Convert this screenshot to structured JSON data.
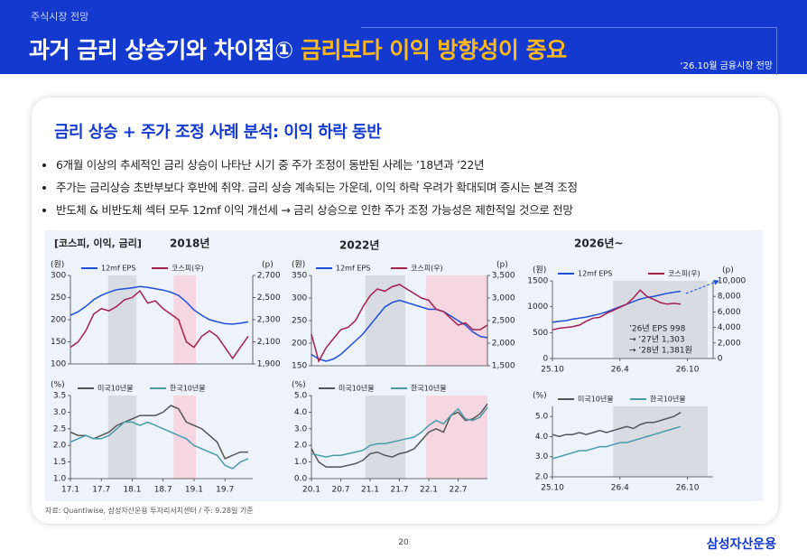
{
  "header": {
    "section": "주식시장 전망",
    "title": "과거 금리 상승기와 차이점①",
    "title_highlight": "금리보다 이익 방향성이 중요",
    "date": "‘26.10월 금융시장 전망"
  },
  "heading": "금리 상승 + 주가 조정 사례 분석: 이익 하락 동반",
  "bullets": [
    "6개월 이상의 추세적인 금리 상승이 나타난 시기 중 주가 조정이 동반된 사례는 ’18년과 ’22년",
    "주가는 금리상승 초반부보다 후반에 취약. 금리 상승 계속되는 가운데, 이익 하락 우려가 확대되며 증시는 본격 조정",
    "반도체 & 비반도체 섹터 모두 12mf 이익 개선세 → 금리 상승으로 인한 주가 조정 가능성은 제한적일 것으로 전망"
  ],
  "chart_group_label": "[코스피, 이익, 금리]",
  "source": "자료: Quantiwise, 삼성자산운용 투자리서치센터 / 주: 9.28일 기준",
  "page_number": "20",
  "logo": "삼성자산운용",
  "chart_data": [
    {
      "type": "line",
      "title": "2018년",
      "y_unit": "(원)",
      "y2_unit": "(p)",
      "x": [
        2017,
        2017.125,
        2017.25,
        2017.375,
        2017.5,
        2017.625,
        2017.75,
        2017.875,
        2018,
        2018.125,
        2018.25,
        2018.375,
        2018.5,
        2018.625,
        2018.75,
        2018.875,
        2019,
        2019.125,
        2019.25,
        2019.375,
        2019.5,
        2019.625,
        2019.75,
        2019.875
      ],
      "xlim": [
        2017,
        2019.95
      ],
      "ylim": [
        100,
        300
      ],
      "yticks": [
        100,
        150,
        200,
        250,
        300
      ],
      "y2lim": [
        1900,
        2700
      ],
      "y2ticks": [
        {
          "value": 1900,
          "label": "1,900"
        },
        {
          "value": 2100,
          "label": "2,100"
        },
        {
          "value": 2300,
          "label": "2,300"
        },
        {
          "value": 2500,
          "label": "2,500"
        },
        {
          "value": 2700,
          "label": "2,700"
        }
      ],
      "shaded": [
        {
          "from": 2017.61,
          "to": 2018.07,
          "color": "#d9dbe3"
        },
        {
          "from": 2018.67,
          "to": 2019.03,
          "color": "#f6d6e0"
        }
      ],
      "series": [
        {
          "name": "12mf EPS",
          "color": "#1f4fd8",
          "values": [
            210,
            218,
            230,
            245,
            255,
            262,
            268,
            270,
            272,
            275,
            273,
            270,
            267,
            262,
            255,
            240,
            222,
            210,
            200,
            195,
            191,
            190,
            192,
            195
          ]
        },
        {
          "name": "코스피(우)",
          "color": "#a3204d",
          "axis": "y2",
          "values": [
            2050,
            2100,
            2200,
            2350,
            2400,
            2380,
            2420,
            2480,
            2500,
            2560,
            2450,
            2470,
            2400,
            2350,
            2300,
            2100,
            2050,
            2150,
            2200,
            2150,
            2050,
            1950,
            2050,
            2150
          ]
        }
      ]
    },
    {
      "type": "line",
      "y_unit": "(%)",
      "x": [
        2017,
        2017.125,
        2017.25,
        2017.375,
        2017.5,
        2017.625,
        2017.75,
        2017.875,
        2018,
        2018.125,
        2018.25,
        2018.375,
        2018.5,
        2018.625,
        2018.75,
        2018.875,
        2019,
        2019.125,
        2019.25,
        2019.375,
        2019.5,
        2019.625,
        2019.75,
        2019.875
      ],
      "xlim": [
        2017,
        2019.95
      ],
      "xticks": [
        {
          "value": 2017,
          "label": "17.1"
        },
        {
          "value": 2017.5,
          "label": "17.7"
        },
        {
          "value": 2018,
          "label": "18.1"
        },
        {
          "value": 2018.5,
          "label": "18.7"
        },
        {
          "value": 2019,
          "label": "19.1"
        },
        {
          "value": 2019.5,
          "label": "19.7"
        }
      ],
      "ylim": [
        1,
        3.5
      ],
      "yticks": [
        {
          "value": 1,
          "label": "1.0"
        },
        1.5,
        {
          "value": 2,
          "label": "2.0"
        },
        2.5,
        {
          "value": 3,
          "label": "3.0"
        },
        3.5
      ],
      "shaded": [
        {
          "from": 2017.61,
          "to": 2018.07,
          "color": "#d9dbe3"
        },
        {
          "from": 2018.67,
          "to": 2019.03,
          "color": "#f6d6e0"
        }
      ],
      "series": [
        {
          "name": "미국10년물",
          "color": "#555555",
          "values": [
            2.4,
            2.3,
            2.3,
            2.2,
            2.3,
            2.4,
            2.6,
            2.7,
            2.8,
            2.9,
            2.9,
            2.9,
            3.0,
            3.2,
            3.1,
            2.7,
            2.6,
            2.5,
            2.3,
            2.1,
            1.6,
            1.7,
            1.8,
            1.8
          ]
        },
        {
          "name": "한국10년물",
          "color": "#4a9bab",
          "values": [
            2.1,
            2.2,
            2.3,
            2.2,
            2.2,
            2.3,
            2.5,
            2.7,
            2.7,
            2.6,
            2.7,
            2.6,
            2.5,
            2.4,
            2.3,
            2.2,
            2.0,
            1.9,
            1.8,
            1.7,
            1.4,
            1.3,
            1.5,
            1.6
          ]
        }
      ]
    },
    {
      "type": "line",
      "title": "2022년",
      "y_unit": "(원)",
      "y2_unit": "(p)",
      "x": [
        2020,
        2020.125,
        2020.25,
        2020.375,
        2020.5,
        2020.625,
        2020.75,
        2020.875,
        2021,
        2021.125,
        2021.25,
        2021.375,
        2021.5,
        2021.625,
        2021.75,
        2021.875,
        2022,
        2022.125,
        2022.25,
        2022.375,
        2022.5,
        2022.625,
        2022.75,
        2022.875,
        2023
      ],
      "xlim": [
        2020,
        2023
      ],
      "ylim": [
        150,
        350
      ],
      "yticks": [
        150,
        200,
        250,
        300,
        350
      ],
      "y2lim": [
        1500,
        3500
      ],
      "y2ticks": [
        {
          "value": 1500,
          "label": "1,500"
        },
        {
          "value": 2000,
          "label": "2,000"
        },
        {
          "value": 2500,
          "label": "2,500"
        },
        {
          "value": 3000,
          "label": "3,000"
        },
        {
          "value": 3500,
          "label": "3,500"
        }
      ],
      "shaded": [
        {
          "from": 2020.92,
          "to": 2021.6,
          "color": "#d9dbe3"
        },
        {
          "from": 2021.95,
          "to": 2023,
          "color": "#f6d6e0"
        }
      ],
      "series": [
        {
          "name": "12mf EPS",
          "color": "#1f4fd8",
          "values": [
            175,
            165,
            160,
            165,
            175,
            190,
            205,
            220,
            240,
            260,
            280,
            290,
            295,
            290,
            285,
            280,
            275,
            275,
            270,
            260,
            250,
            240,
            225,
            215,
            212
          ]
        },
        {
          "name": "코스피(우)",
          "color": "#a3204d",
          "axis": "y2",
          "values": [
            2200,
            1600,
            1900,
            2100,
            2300,
            2350,
            2500,
            2800,
            3050,
            3200,
            3150,
            3250,
            3300,
            3200,
            3100,
            3000,
            2950,
            2750,
            2700,
            2550,
            2400,
            2450,
            2300,
            2300,
            2400
          ]
        }
      ]
    },
    {
      "type": "line",
      "y_unit": "(%)",
      "x": [
        2020,
        2020.125,
        2020.25,
        2020.375,
        2020.5,
        2020.625,
        2020.75,
        2020.875,
        2021,
        2021.125,
        2021.25,
        2021.375,
        2021.5,
        2021.625,
        2021.75,
        2021.875,
        2022,
        2022.125,
        2022.25,
        2022.375,
        2022.5,
        2022.625,
        2022.75,
        2022.875,
        2023
      ],
      "xlim": [
        2020,
        2023
      ],
      "xticks": [
        {
          "value": 2020,
          "label": "20.1"
        },
        {
          "value": 2020.5,
          "label": "20.7"
        },
        {
          "value": 2021,
          "label": "21.1"
        },
        {
          "value": 2021.5,
          "label": "21.7"
        },
        {
          "value": 2022,
          "label": "22.1"
        },
        {
          "value": 2022.5,
          "label": "22.7"
        }
      ],
      "ylim": [
        0,
        5
      ],
      "yticks": [
        {
          "value": 0,
          "label": "0.0"
        },
        {
          "value": 1,
          "label": "1.0"
        },
        {
          "value": 2,
          "label": "2.0"
        },
        {
          "value": 3,
          "label": "3.0"
        },
        {
          "value": 4,
          "label": "4.0"
        },
        {
          "value": 5,
          "label": "5.0"
        }
      ],
      "shaded": [
        {
          "from": 2020.92,
          "to": 2021.6,
          "color": "#d9dbe3"
        },
        {
          "from": 2021.95,
          "to": 2023,
          "color": "#f6d6e0"
        }
      ],
      "series": [
        {
          "name": "미국10년물",
          "color": "#555555",
          "values": [
            1.8,
            1.0,
            0.7,
            0.7,
            0.7,
            0.8,
            0.9,
            1.1,
            1.5,
            1.6,
            1.4,
            1.3,
            1.5,
            1.6,
            1.8,
            2.3,
            2.8,
            3.0,
            2.8,
            3.8,
            4.0,
            3.5,
            3.6,
            3.9,
            4.5
          ]
        },
        {
          "name": "한국10년물",
          "color": "#4a9bab",
          "values": [
            1.5,
            1.4,
            1.3,
            1.4,
            1.4,
            1.5,
            1.6,
            1.7,
            2.0,
            2.1,
            2.1,
            2.2,
            2.3,
            2.4,
            2.5,
            2.8,
            3.2,
            3.5,
            3.3,
            3.8,
            4.2,
            3.6,
            3.5,
            3.7,
            4.3
          ]
        }
      ]
    },
    {
      "type": "line",
      "title": "2026년~",
      "y_unit": "(원)",
      "y2_unit": "(p)",
      "annotations": [
        "’26년 EPS 998",
        "→ ’27년 1,303",
        "→ ’28년 1,381원"
      ],
      "x": [
        2025.75,
        2025.8,
        2025.85,
        2025.9,
        2025.95,
        2026,
        2026.05,
        2026.1,
        2026.15,
        2026.2,
        2026.25,
        2026.3,
        2026.35,
        2026.4,
        2026.45,
        2026.5,
        2026.55,
        2026.6,
        2026.65,
        2026.7
      ],
      "xlim": [
        2025.75,
        2026.94
      ],
      "xticks": [
        {
          "value": 2025.75,
          "label": "25.10"
        },
        {
          "value": 2026.25,
          "label": "26.4"
        },
        {
          "value": 2026.75,
          "label": "26.10"
        }
      ],
      "ylim": [
        0,
        1500
      ],
      "yticks": [
        0,
        500,
        1000,
        1500
      ],
      "y2lim": [
        0,
        10000
      ],
      "y2ticks": [
        0,
        {
          "value": 2000,
          "label": "2,000"
        },
        {
          "value": 4000,
          "label": "4,000"
        },
        {
          "value": 6000,
          "label": "6,000"
        },
        {
          "value": 8000,
          "label": "8,000"
        },
        {
          "value": 10000,
          "label": "10,000"
        }
      ],
      "shaded": [
        {
          "from": 2026.2,
          "to": 2026.9,
          "color": "#d9dbe3"
        }
      ],
      "series": [
        {
          "name": "12mf EPS",
          "color": "#1f4fd8",
          "values": [
            700,
            720,
            730,
            760,
            780,
            800,
            830,
            860,
            900,
            950,
            1000,
            1050,
            1100,
            1150,
            1180,
            1200,
            1230,
            1260,
            1280,
            1300
          ]
        },
        {
          "name": "코스피(우)",
          "color": "#a3204d",
          "axis": "y2",
          "values": [
            3700,
            3900,
            4000,
            4100,
            4300,
            4800,
            5200,
            5300,
            5800,
            6200,
            6600,
            7000,
            7800,
            8800,
            8000,
            7600,
            7200,
            7000,
            7100,
            7000
          ]
        }
      ]
    },
    {
      "type": "line",
      "y_unit": "(%)",
      "x": [
        2025.75,
        2025.8,
        2025.85,
        2025.9,
        2025.95,
        2026,
        2026.05,
        2026.1,
        2026.15,
        2026.2,
        2026.25,
        2026.3,
        2026.35,
        2026.4,
        2026.45,
        2026.5,
        2026.55,
        2026.6,
        2026.65,
        2026.7
      ],
      "xlim": [
        2025.75,
        2026.94
      ],
      "xticks": [
        {
          "value": 2025.75,
          "label": "25.10"
        },
        {
          "value": 2026.25,
          "label": "26.4"
        },
        {
          "value": 2026.75,
          "label": "26.10"
        }
      ],
      "ylim": [
        2,
        5.5
      ],
      "yticks": [
        {
          "value": 2,
          "label": "2.0"
        },
        {
          "value": 3,
          "label": "3.0"
        },
        {
          "value": 4,
          "label": "4.0"
        },
        {
          "value": 5,
          "label": "5.0"
        }
      ],
      "shaded": [
        {
          "from": 2026.2,
          "to": 2026.9,
          "color": "#d9dbe3"
        }
      ],
      "series": [
        {
          "name": "미국10년물",
          "color": "#555555",
          "values": [
            4.1,
            4.0,
            4.1,
            4.1,
            4.2,
            4.1,
            4.2,
            4.3,
            4.2,
            4.3,
            4.4,
            4.5,
            4.4,
            4.6,
            4.7,
            4.7,
            4.8,
            4.9,
            5.0,
            5.2
          ]
        },
        {
          "name": "한국10년물",
          "color": "#4a9bab",
          "values": [
            2.9,
            3.0,
            3.1,
            3.2,
            3.3,
            3.3,
            3.4,
            3.5,
            3.5,
            3.6,
            3.7,
            3.7,
            3.8,
            3.9,
            4.0,
            4.1,
            4.2,
            4.3,
            4.4,
            4.5
          ]
        }
      ]
    }
  ]
}
